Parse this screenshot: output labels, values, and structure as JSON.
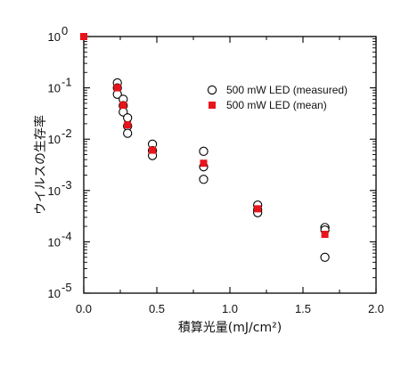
{
  "chart_data": {
    "type": "scatter",
    "xlabel": "積算光量(mJ/cm²)",
    "ylabel": "ウイルスの生存率",
    "xlim": [
      0,
      2.0
    ],
    "ylim": [
      1e-05,
      1
    ],
    "yscale": "log",
    "x_ticks": [
      "0.0",
      "0.5",
      "1.0",
      "1.5",
      "2.0"
    ],
    "y_ticks": [
      {
        "base": "10",
        "exp": "0"
      },
      {
        "base": "10",
        "exp": "-1"
      },
      {
        "base": "10",
        "exp": "-2"
      },
      {
        "base": "10",
        "exp": "-3"
      },
      {
        "base": "10",
        "exp": "-4"
      },
      {
        "base": "10",
        "exp": "-5"
      }
    ],
    "grid": false,
    "legend_position": "top-right",
    "series": [
      {
        "name": "500 mW LED (measured)",
        "marker": "open-circle",
        "color": "#000000",
        "points": [
          [
            0.23,
            0.125
          ],
          [
            0.23,
            0.1
          ],
          [
            0.23,
            0.075
          ],
          [
            0.27,
            0.06
          ],
          [
            0.27,
            0.045
          ],
          [
            0.27,
            0.034
          ],
          [
            0.3,
            0.026
          ],
          [
            0.3,
            0.018
          ],
          [
            0.3,
            0.013
          ],
          [
            0.47,
            0.008
          ],
          [
            0.47,
            0.006
          ],
          [
            0.47,
            0.0048
          ],
          [
            0.82,
            0.0058
          ],
          [
            0.82,
            0.0029
          ],
          [
            0.82,
            0.00165
          ],
          [
            1.19,
            0.00052
          ],
          [
            1.19,
            0.00042
          ],
          [
            1.19,
            0.00037
          ],
          [
            1.65,
            0.00019
          ],
          [
            1.65,
            0.00017
          ],
          [
            1.65,
            5e-05
          ]
        ]
      },
      {
        "name": "500 mW LED (mean)",
        "marker": "filled-square",
        "color": "#e8141b",
        "points": [
          [
            0.0,
            1.0
          ],
          [
            0.23,
            0.1
          ],
          [
            0.27,
            0.046
          ],
          [
            0.3,
            0.019
          ],
          [
            0.47,
            0.0061
          ],
          [
            0.82,
            0.0034
          ],
          [
            1.19,
            0.00044
          ],
          [
            1.65,
            0.00014
          ]
        ]
      }
    ]
  }
}
